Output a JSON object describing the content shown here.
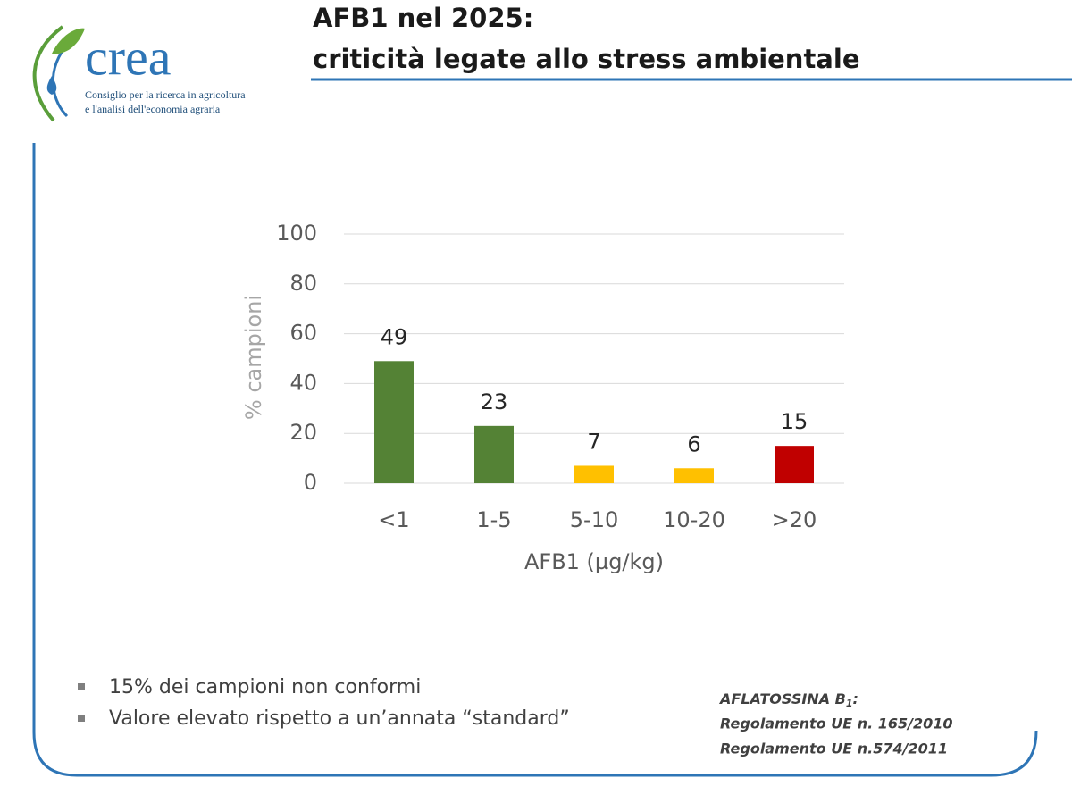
{
  "header": {
    "title_lines": [
      "AFB1 nel 2025:",
      "criticità legate allo stress ambientale"
    ]
  },
  "logo": {
    "name": "crea",
    "lines": [
      "Consiglio per la ricerca in agricoltura",
      "e l'analisi dell'economia agraria"
    ]
  },
  "chart_data": {
    "type": "bar",
    "categories": [
      "<1",
      "1-5",
      "5-10",
      "10-20",
      ">20"
    ],
    "values": [
      49,
      23,
      7,
      6,
      15
    ],
    "colors": [
      "#548235",
      "#548235",
      "#ffc000",
      "#ffc000",
      "#c00000"
    ],
    "x_label": "AFB1 (µg/kg)",
    "y_label": "% campioni",
    "ylim": [
      0,
      100
    ],
    "yticks": [
      0,
      20,
      40,
      60,
      80,
      100
    ],
    "grid": true
  },
  "bullets": [
    "15% dei campioni non conformi",
    "Valore elevato rispetto a un’annata “standard”"
  ],
  "note": {
    "title": [
      "AFLATOSSINA B",
      "1",
      ":"
    ],
    "lines": [
      "Regolamento UE n. 165/2010",
      "Regolamento UE n.574/2011"
    ]
  }
}
